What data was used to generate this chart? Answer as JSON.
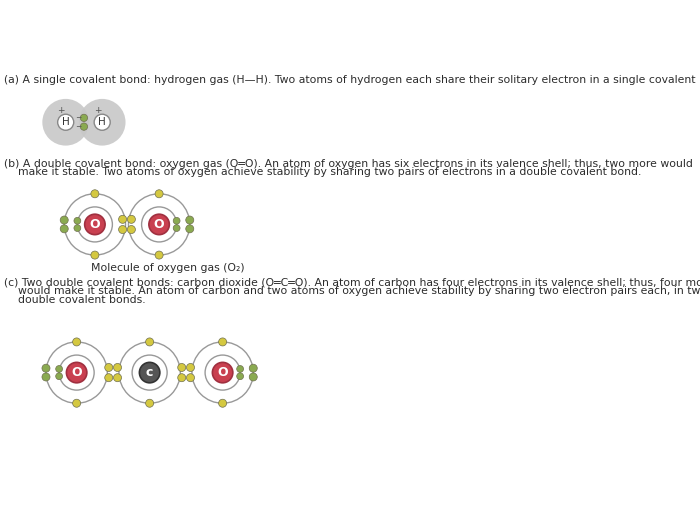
{
  "bg_color": "#ffffff",
  "text_color": "#2c2c2c",
  "text_a": "(a) A single covalent bond: hydrogen gas (H—H). Two atoms of hydrogen each share their solitary electron in a single covalent bond.",
  "text_b1": "(b) A double covalent bond: oxygen gas (O═O). An atom of oxygen has six electrons in its valence shell; thus, two more would",
  "text_b2": "    make it stable. Two atoms of oxygen achieve stability by sharing two pairs of electrons in a double covalent bond.",
  "text_c1": "(c) Two double covalent bonds: carbon dioxide (O═C═O). An atom of carbon has four electrons in its valence shell; thus, four more",
  "text_c2": "    would make it stable. An atom of carbon and two atoms of oxygen achieve stability by sharing two electron pairs each, in two",
  "text_c3": "    double covalent bonds.",
  "label_o2": "Molecule of oxygen gas (O₂)",
  "gray_shell": "#c8c8c8",
  "h_nucleus_fill": "#ffffff",
  "h_nucleus_edge": "#888888",
  "o_nucleus_fill": "#c94050",
  "o_nucleus_edge": "#a03040",
  "c_nucleus_fill": "#555555",
  "c_nucleus_edge": "#333333",
  "orbit_color": "#999999",
  "electron_yellow": "#d4c840",
  "electron_green": "#8aaa50",
  "font_size": 7.8
}
